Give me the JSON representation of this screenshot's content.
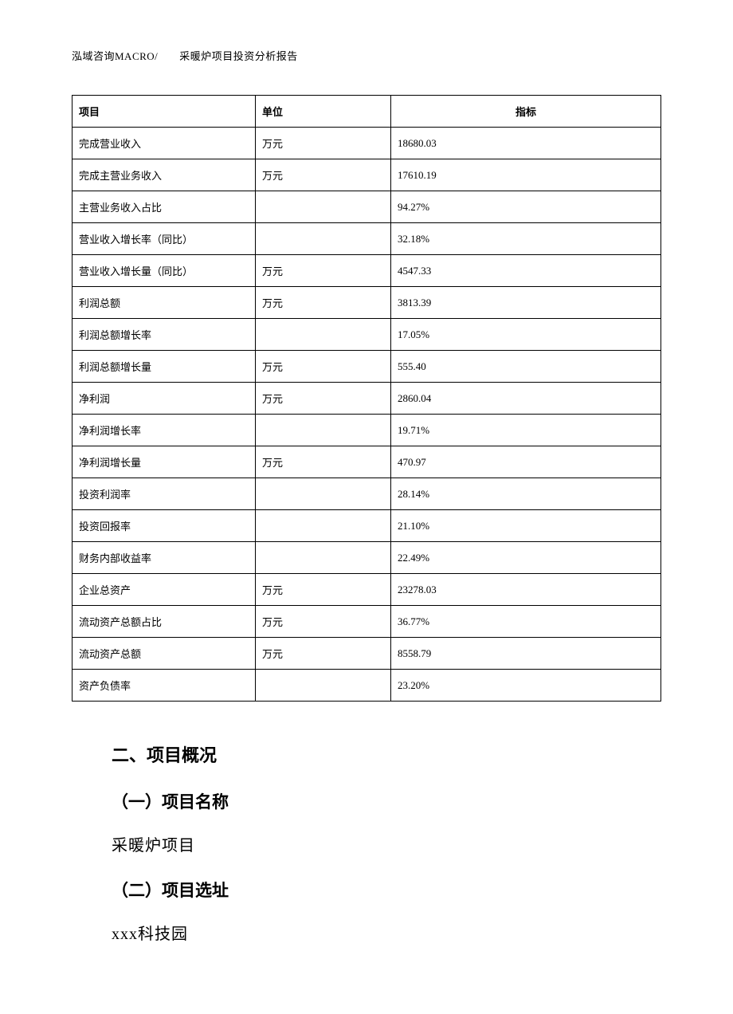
{
  "header": "泓域咨询MACRO/　　采暖炉项目投资分析报告",
  "table": {
    "columns": [
      "项目",
      "单位",
      "指标"
    ],
    "rows": [
      [
        "完成营业收入",
        "万元",
        "18680.03"
      ],
      [
        "完成主营业务收入",
        "万元",
        "17610.19"
      ],
      [
        "主营业务收入占比",
        "",
        "94.27%"
      ],
      [
        "营业收入增长率（同比）",
        "",
        "32.18%"
      ],
      [
        "营业收入增长量（同比）",
        "万元",
        "4547.33"
      ],
      [
        "利润总额",
        "万元",
        "3813.39"
      ],
      [
        "利润总额增长率",
        "",
        "17.05%"
      ],
      [
        "利润总额增长量",
        "万元",
        "555.40"
      ],
      [
        "净利润",
        "万元",
        "2860.04"
      ],
      [
        "净利润增长率",
        "",
        "19.71%"
      ],
      [
        "净利润增长量",
        "万元",
        "470.97"
      ],
      [
        "投资利润率",
        "",
        "28.14%"
      ],
      [
        "投资回报率",
        "",
        "21.10%"
      ],
      [
        "财务内部收益率",
        "",
        "22.49%"
      ],
      [
        "企业总资产",
        "万元",
        "23278.03"
      ],
      [
        "流动资产总额占比",
        "万元",
        "36.77%"
      ],
      [
        "流动资产总额",
        "万元",
        "8558.79"
      ],
      [
        "资产负债率",
        "",
        "23.20%"
      ]
    ]
  },
  "sections": {
    "title": "二、项目概况",
    "sub1_title": "（一）项目名称",
    "sub1_text": "采暖炉项目",
    "sub2_title": "（二）项目选址",
    "sub2_text": "xxx科技园"
  }
}
